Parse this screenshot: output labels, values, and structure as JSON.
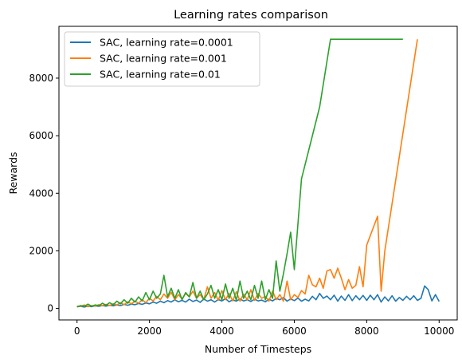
{
  "chart_data": {
    "type": "line",
    "title": "Learning rates comparison",
    "xlabel": "Number of Timesteps",
    "ylabel": "Rewards",
    "xlim": [
      -500,
      10500
    ],
    "ylim": [
      -400,
      9800
    ],
    "xticks": [
      0,
      2000,
      4000,
      6000,
      8000,
      10000
    ],
    "yticks": [
      0,
      2000,
      4000,
      6000,
      8000
    ],
    "grid": false,
    "legend_position": "upper-left",
    "series": [
      {
        "name": "SAC, learning rate=0.0001",
        "color": "#1f77b4",
        "points": [
          [
            0,
            60
          ],
          [
            100,
            70
          ],
          [
            200,
            50
          ],
          [
            300,
            80
          ],
          [
            400,
            60
          ],
          [
            500,
            90
          ],
          [
            600,
            70
          ],
          [
            700,
            100
          ],
          [
            800,
            80
          ],
          [
            900,
            110
          ],
          [
            1000,
            90
          ],
          [
            1100,
            120
          ],
          [
            1200,
            100
          ],
          [
            1300,
            140
          ],
          [
            1400,
            110
          ],
          [
            1500,
            150
          ],
          [
            1600,
            130
          ],
          [
            1700,
            170
          ],
          [
            1800,
            140
          ],
          [
            1900,
            190
          ],
          [
            2000,
            160
          ],
          [
            2100,
            220
          ],
          [
            2200,
            180
          ],
          [
            2300,
            250
          ],
          [
            2400,
            200
          ],
          [
            2500,
            270
          ],
          [
            2600,
            220
          ],
          [
            2700,
            300
          ],
          [
            2800,
            230
          ],
          [
            2900,
            280
          ],
          [
            3000,
            220
          ],
          [
            3100,
            320
          ],
          [
            3200,
            240
          ],
          [
            3300,
            290
          ],
          [
            3400,
            210
          ],
          [
            3500,
            330
          ],
          [
            3600,
            250
          ],
          [
            3700,
            300
          ],
          [
            3800,
            220
          ],
          [
            3900,
            310
          ],
          [
            4000,
            260
          ],
          [
            4100,
            340
          ],
          [
            4200,
            230
          ],
          [
            4300,
            300
          ],
          [
            4400,
            250
          ],
          [
            4500,
            330
          ],
          [
            4600,
            260
          ],
          [
            4700,
            300
          ],
          [
            4800,
            240
          ],
          [
            4900,
            320
          ],
          [
            5000,
            260
          ],
          [
            5100,
            290
          ],
          [
            5200,
            230
          ],
          [
            5300,
            320
          ],
          [
            5400,
            260
          ],
          [
            5500,
            350
          ],
          [
            5600,
            300
          ],
          [
            5700,
            380
          ],
          [
            5800,
            250
          ],
          [
            5900,
            330
          ],
          [
            6000,
            270
          ],
          [
            6100,
            360
          ],
          [
            6200,
            250
          ],
          [
            6300,
            320
          ],
          [
            6400,
            260
          ],
          [
            6500,
            420
          ],
          [
            6600,
            300
          ],
          [
            6700,
            520
          ],
          [
            6800,
            350
          ],
          [
            6900,
            430
          ],
          [
            7000,
            300
          ],
          [
            7100,
            460
          ],
          [
            7200,
            250
          ],
          [
            7300,
            430
          ],
          [
            7400,
            280
          ],
          [
            7500,
            480
          ],
          [
            7600,
            270
          ],
          [
            7700,
            440
          ],
          [
            7800,
            300
          ],
          [
            7900,
            450
          ],
          [
            8000,
            280
          ],
          [
            8100,
            460
          ],
          [
            8200,
            300
          ],
          [
            8300,
            480
          ],
          [
            8400,
            220
          ],
          [
            8500,
            400
          ],
          [
            8600,
            260
          ],
          [
            8700,
            440
          ],
          [
            8800,
            250
          ],
          [
            8900,
            380
          ],
          [
            9000,
            280
          ],
          [
            9100,
            420
          ],
          [
            9200,
            300
          ],
          [
            9300,
            440
          ],
          [
            9400,
            280
          ],
          [
            9500,
            350
          ],
          [
            9600,
            780
          ],
          [
            9700,
            650
          ],
          [
            9800,
            260
          ],
          [
            9900,
            480
          ],
          [
            10000,
            240
          ]
        ]
      },
      {
        "name": "SAC, learning rate=0.001",
        "color": "#ff7f0e",
        "points": [
          [
            0,
            80
          ],
          [
            100,
            70
          ],
          [
            200,
            120
          ],
          [
            300,
            60
          ],
          [
            400,
            100
          ],
          [
            500,
            80
          ],
          [
            600,
            130
          ],
          [
            700,
            90
          ],
          [
            800,
            140
          ],
          [
            900,
            100
          ],
          [
            1000,
            160
          ],
          [
            1100,
            120
          ],
          [
            1200,
            200
          ],
          [
            1300,
            130
          ],
          [
            1400,
            230
          ],
          [
            1500,
            160
          ],
          [
            1600,
            250
          ],
          [
            1700,
            180
          ],
          [
            1800,
            300
          ],
          [
            1900,
            200
          ],
          [
            2000,
            350
          ],
          [
            2100,
            260
          ],
          [
            2200,
            420
          ],
          [
            2300,
            300
          ],
          [
            2400,
            500
          ],
          [
            2500,
            350
          ],
          [
            2600,
            560
          ],
          [
            2700,
            300
          ],
          [
            2800,
            480
          ],
          [
            2900,
            330
          ],
          [
            3000,
            520
          ],
          [
            3100,
            400
          ],
          [
            3200,
            600
          ],
          [
            3300,
            350
          ],
          [
            3400,
            480
          ],
          [
            3500,
            300
          ],
          [
            3600,
            750
          ],
          [
            3700,
            350
          ],
          [
            3800,
            550
          ],
          [
            3900,
            280
          ],
          [
            4000,
            620
          ],
          [
            4100,
            300
          ],
          [
            4200,
            520
          ],
          [
            4300,
            260
          ],
          [
            4400,
            580
          ],
          [
            4500,
            250
          ],
          [
            4600,
            500
          ],
          [
            4700,
            300
          ],
          [
            4800,
            650
          ],
          [
            4900,
            280
          ],
          [
            5000,
            520
          ],
          [
            5100,
            350
          ],
          [
            5200,
            420
          ],
          [
            5300,
            250
          ],
          [
            5400,
            600
          ],
          [
            5500,
            300
          ],
          [
            5600,
            480
          ],
          [
            5700,
            250
          ],
          [
            5800,
            950
          ],
          [
            5900,
            300
          ],
          [
            6000,
            480
          ],
          [
            6100,
            380
          ],
          [
            6200,
            620
          ],
          [
            6300,
            500
          ],
          [
            6400,
            1150
          ],
          [
            6500,
            820
          ],
          [
            6600,
            750
          ],
          [
            6700,
            1050
          ],
          [
            6800,
            700
          ],
          [
            6900,
            1300
          ],
          [
            7000,
            1350
          ],
          [
            7100,
            1050
          ],
          [
            7200,
            1400
          ],
          [
            7300,
            1050
          ],
          [
            7400,
            650
          ],
          [
            7500,
            1000
          ],
          [
            7600,
            700
          ],
          [
            7700,
            800
          ],
          [
            7800,
            1450
          ],
          [
            7900,
            750
          ],
          [
            8000,
            2200
          ],
          [
            8300,
            3200
          ],
          [
            8400,
            600
          ],
          [
            8500,
            2000
          ],
          [
            9400,
            9350
          ]
        ]
      },
      {
        "name": "SAC, learning rate=0.01",
        "color": "#2ca02c",
        "points": [
          [
            0,
            50
          ],
          [
            100,
            100
          ],
          [
            200,
            70
          ],
          [
            300,
            150
          ],
          [
            400,
            80
          ],
          [
            500,
            120
          ],
          [
            600,
            90
          ],
          [
            700,
            180
          ],
          [
            800,
            110
          ],
          [
            900,
            200
          ],
          [
            1000,
            130
          ],
          [
            1100,
            250
          ],
          [
            1200,
            160
          ],
          [
            1300,
            300
          ],
          [
            1400,
            180
          ],
          [
            1500,
            350
          ],
          [
            1600,
            220
          ],
          [
            1700,
            400
          ],
          [
            1800,
            260
          ],
          [
            1900,
            550
          ],
          [
            2000,
            300
          ],
          [
            2100,
            600
          ],
          [
            2200,
            350
          ],
          [
            2300,
            500
          ],
          [
            2400,
            1150
          ],
          [
            2500,
            400
          ],
          [
            2600,
            700
          ],
          [
            2700,
            350
          ],
          [
            2800,
            650
          ],
          [
            2900,
            300
          ],
          [
            3000,
            550
          ],
          [
            3100,
            400
          ],
          [
            3200,
            900
          ],
          [
            3300,
            350
          ],
          [
            3400,
            600
          ],
          [
            3500,
            300
          ],
          [
            3600,
            500
          ],
          [
            3700,
            800
          ],
          [
            3800,
            350
          ],
          [
            3900,
            650
          ],
          [
            4000,
            300
          ],
          [
            4100,
            850
          ],
          [
            4200,
            350
          ],
          [
            4300,
            700
          ],
          [
            4400,
            280
          ],
          [
            4500,
            950
          ],
          [
            4600,
            350
          ],
          [
            4700,
            600
          ],
          [
            4800,
            300
          ],
          [
            4900,
            800
          ],
          [
            5000,
            350
          ],
          [
            5100,
            950
          ],
          [
            5200,
            300
          ],
          [
            5300,
            650
          ],
          [
            5400,
            350
          ],
          [
            5500,
            1650
          ],
          [
            5600,
            600
          ],
          [
            5700,
            1200
          ],
          [
            5800,
            1900
          ],
          [
            5900,
            2650
          ],
          [
            6000,
            1350
          ],
          [
            6200,
            4500
          ],
          [
            6700,
            7000
          ],
          [
            7000,
            9350
          ],
          [
            8000,
            9350
          ],
          [
            9000,
            9350
          ]
        ]
      }
    ]
  }
}
